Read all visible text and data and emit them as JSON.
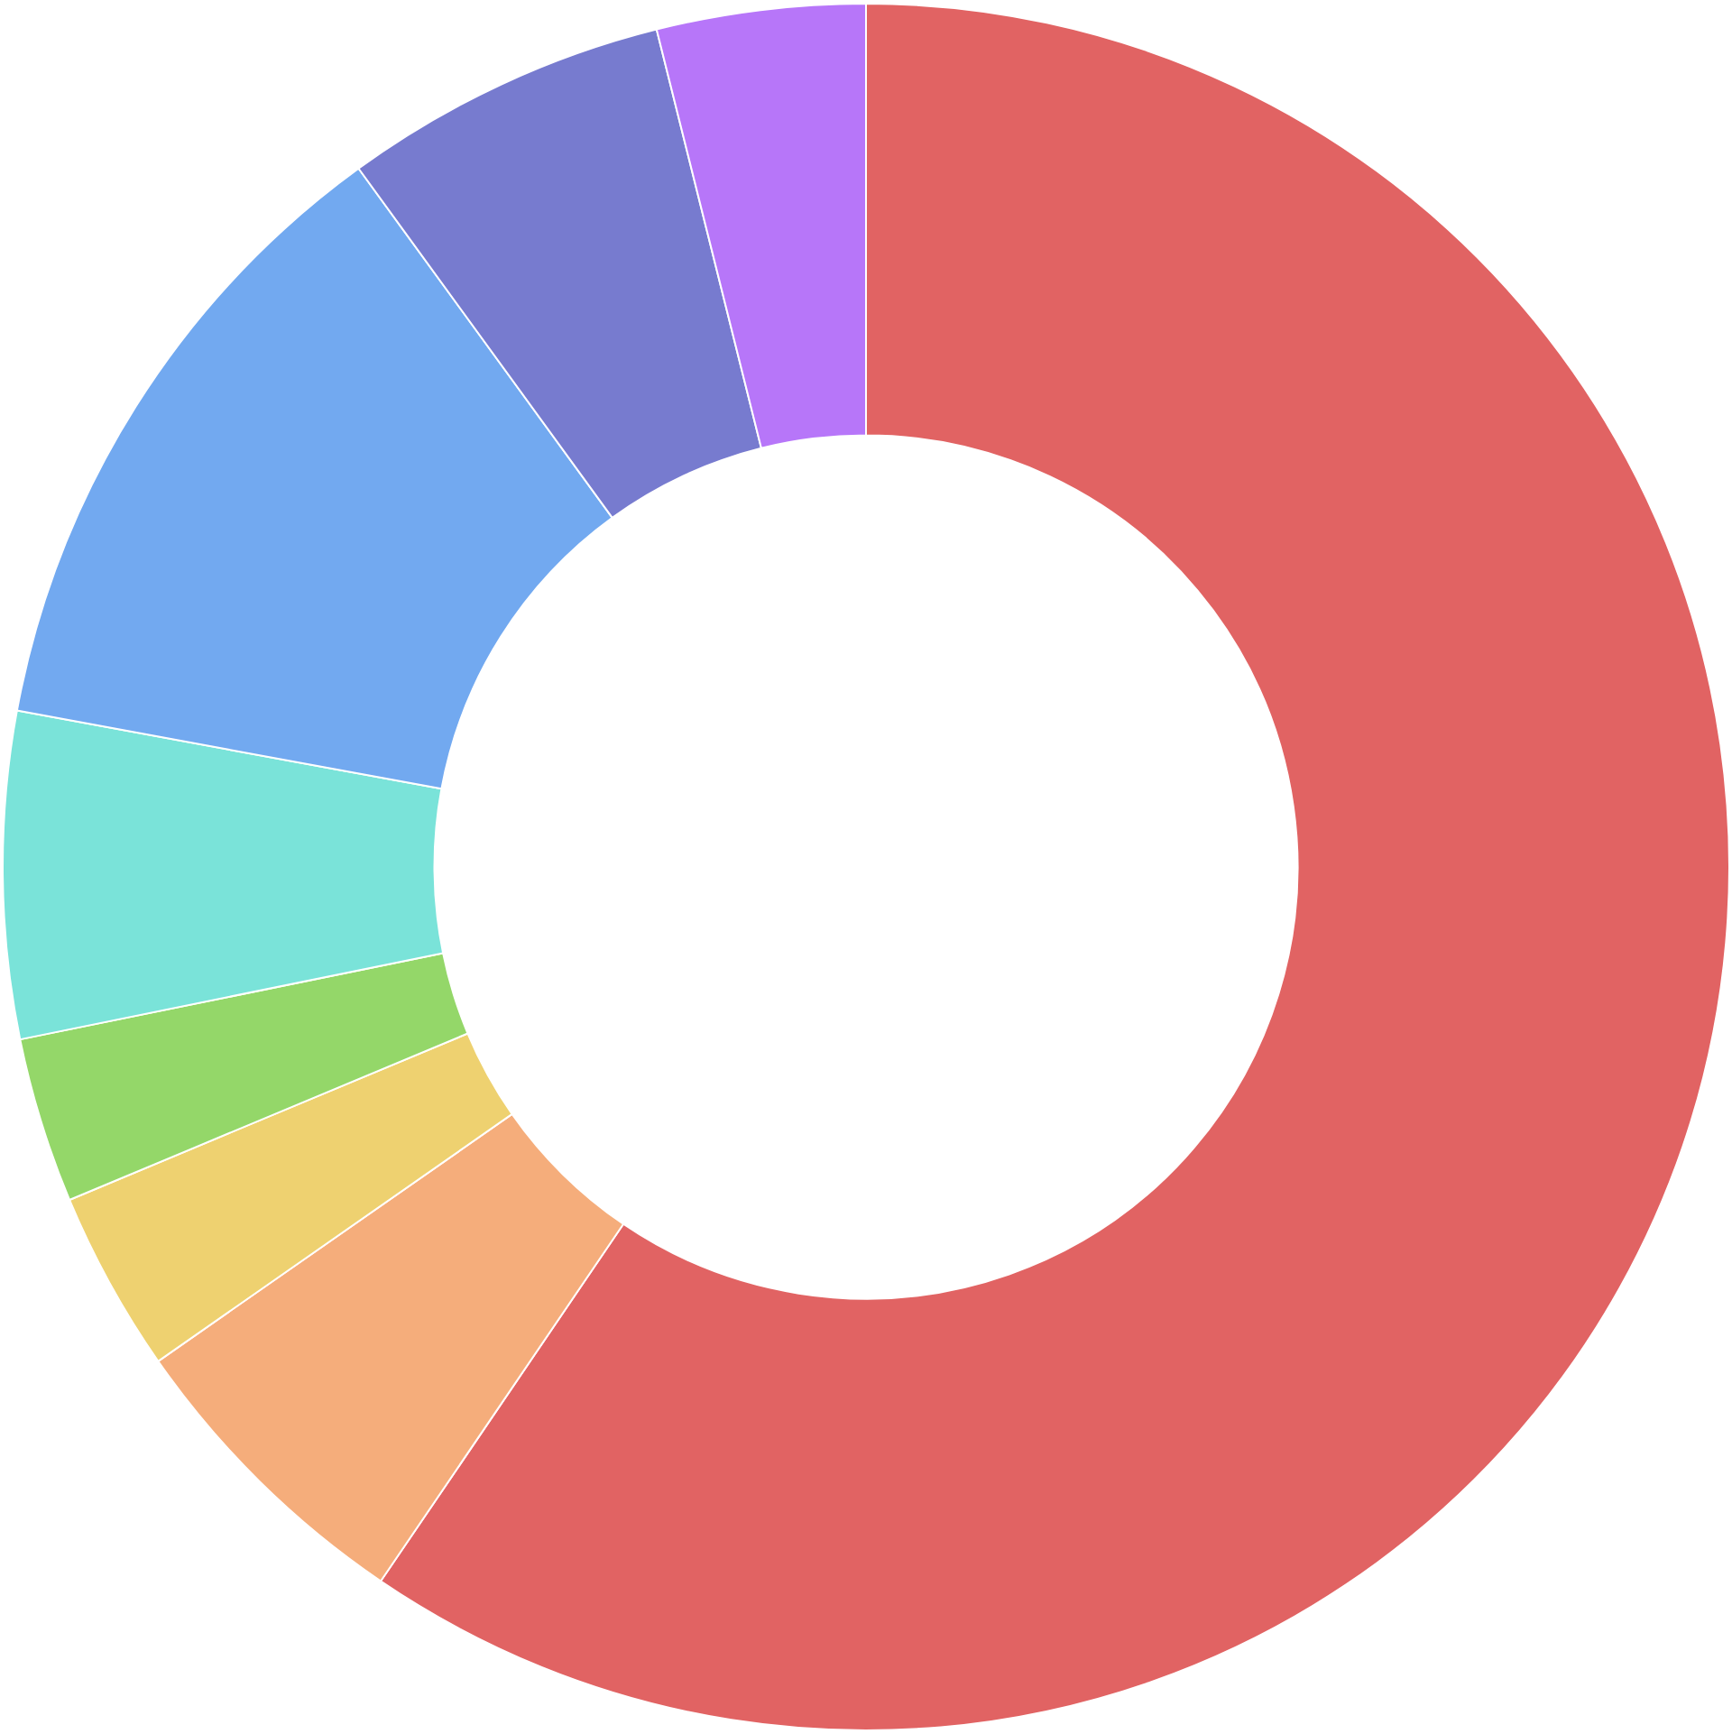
{
  "chart_data": {
    "type": "donut",
    "categories": [
      null,
      null,
      null,
      null,
      null,
      null,
      null,
      null
    ],
    "values": [
      59.5,
      5.8,
      3.4,
      3.1,
      6.1,
      12.1,
      6.1,
      3.9
    ],
    "colors": [
      "#e16363",
      "#f5ad7b",
      "#eed170",
      "#94d769",
      "#7ae3d9",
      "#72a9f0",
      "#777bcf",
      "#b776f9"
    ],
    "legend": false
  }
}
